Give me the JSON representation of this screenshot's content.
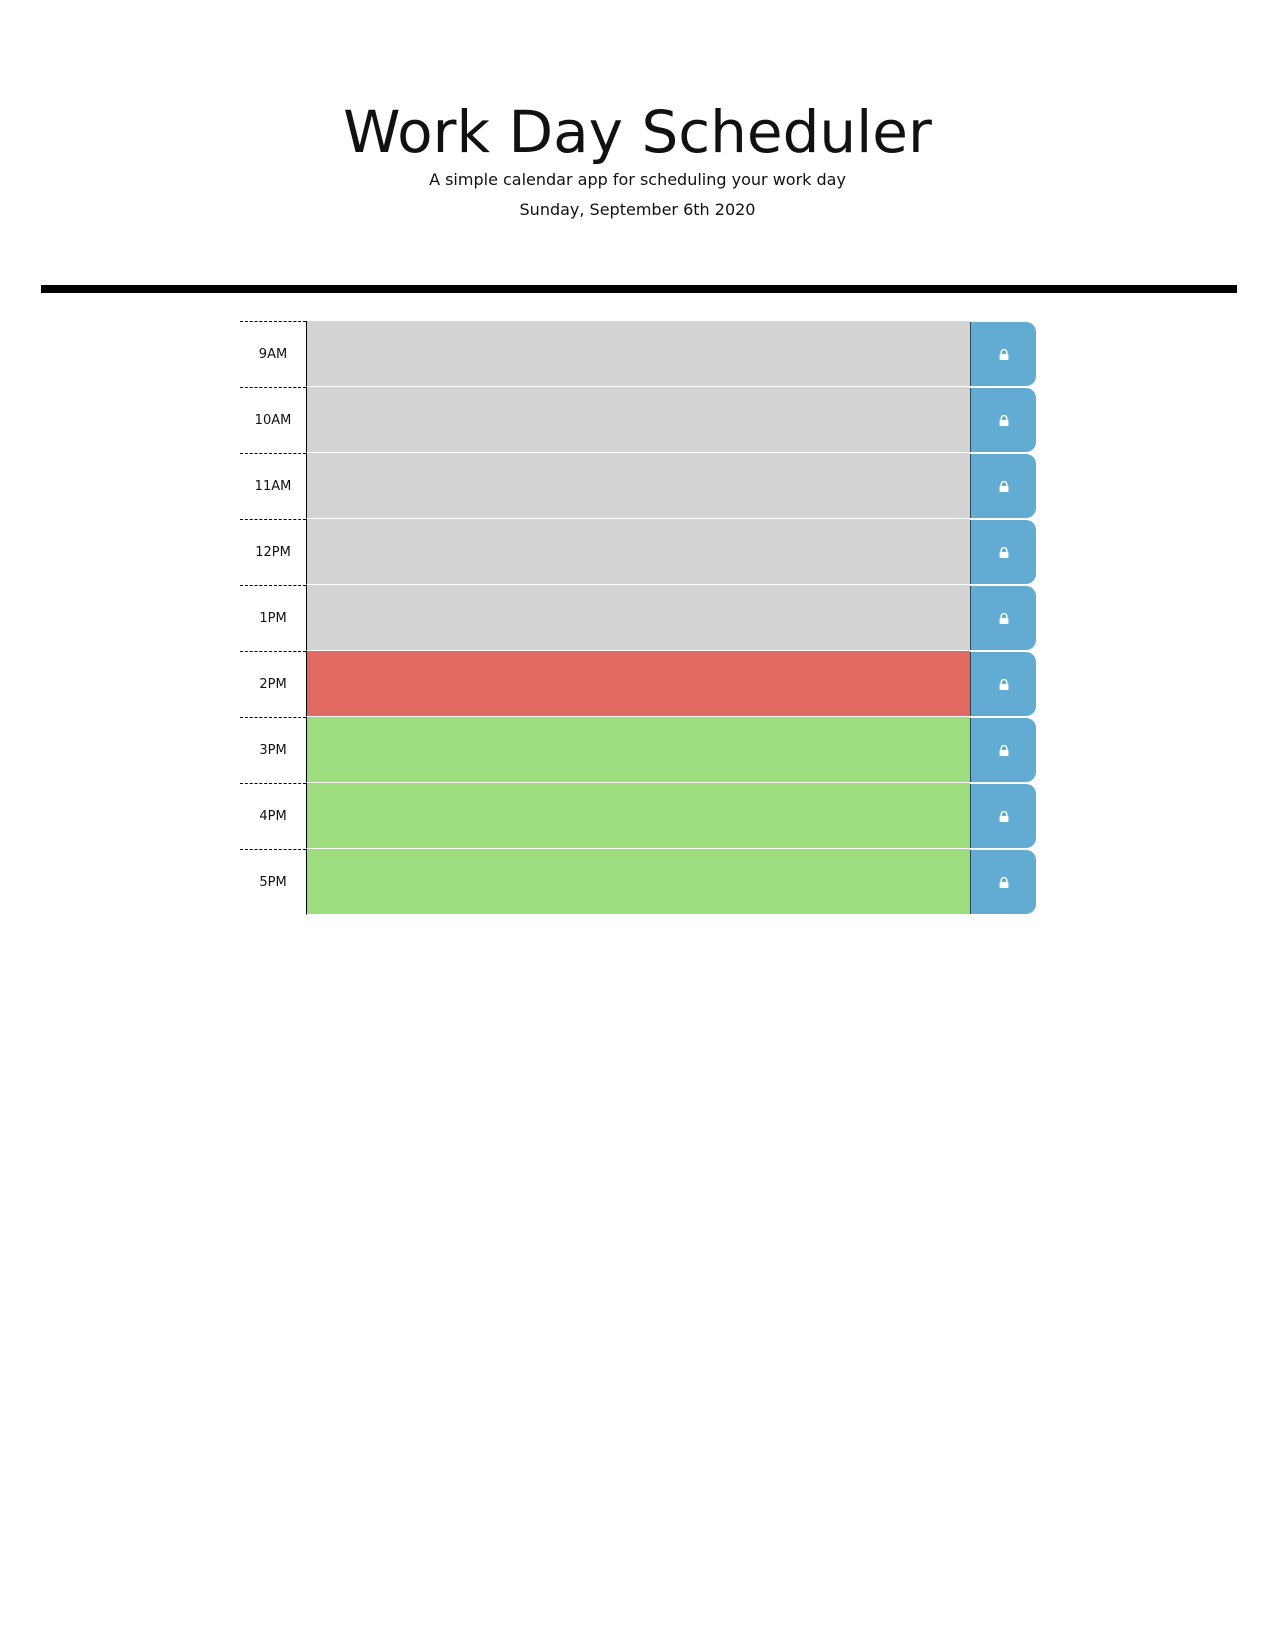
{
  "header": {
    "title": "Work Day Scheduler",
    "subtitle": "A simple calendar app for scheduling your work day",
    "current_day": "Sunday, September 6th 2020"
  },
  "colors": {
    "past": "#d3d3d3",
    "present": "#e06961",
    "future": "#9ddd7e",
    "save_button": "#62acd4"
  },
  "time_blocks": [
    {
      "hour": "9AM",
      "status": "past",
      "description": "",
      "save_icon": "lock-icon"
    },
    {
      "hour": "10AM",
      "status": "past",
      "description": "",
      "save_icon": "lock-icon"
    },
    {
      "hour": "11AM",
      "status": "past",
      "description": "",
      "save_icon": "lock-icon"
    },
    {
      "hour": "12PM",
      "status": "past",
      "description": "",
      "save_icon": "lock-icon"
    },
    {
      "hour": "1PM",
      "status": "past",
      "description": "",
      "save_icon": "lock-icon"
    },
    {
      "hour": "2PM",
      "status": "present",
      "description": "",
      "save_icon": "lock-icon"
    },
    {
      "hour": "3PM",
      "status": "future",
      "description": "",
      "save_icon": "lock-icon"
    },
    {
      "hour": "4PM",
      "status": "future",
      "description": "",
      "save_icon": "lock-icon"
    },
    {
      "hour": "5PM",
      "status": "future",
      "description": "",
      "save_icon": "lock-icon"
    }
  ]
}
